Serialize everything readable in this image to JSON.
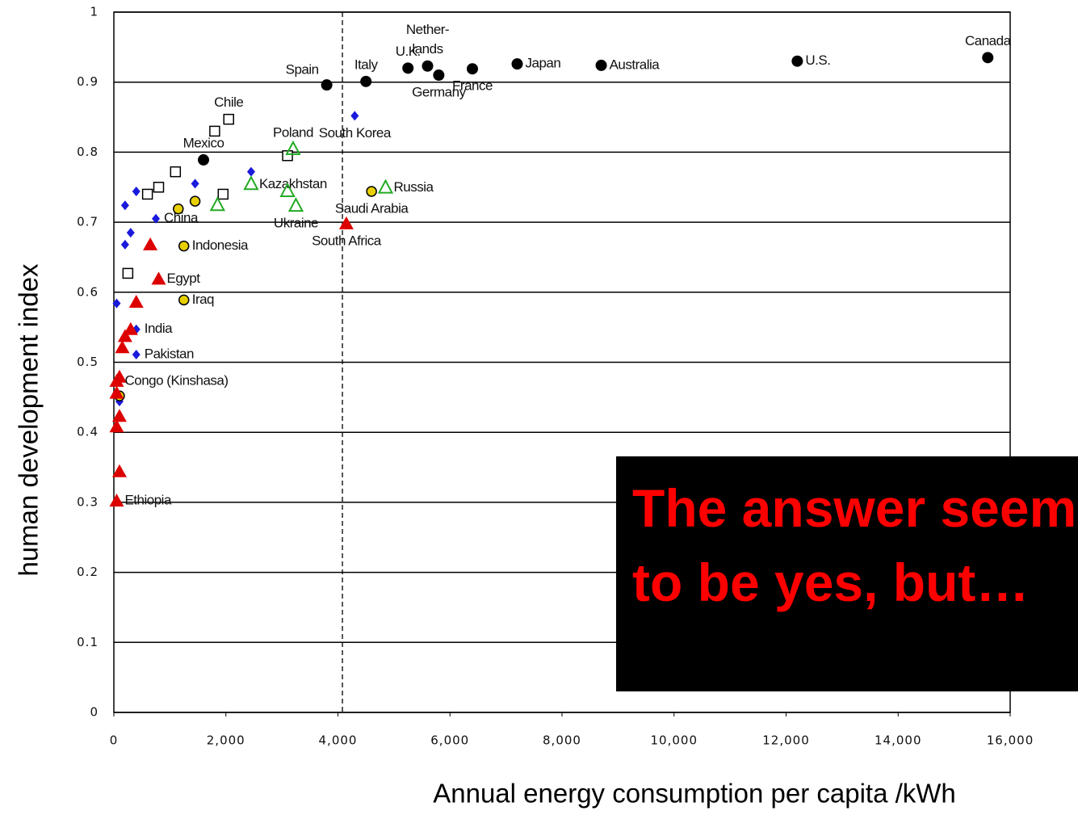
{
  "chart_data": {
    "type": "scatter",
    "x_label": "Annual energy consumption per capita /kWh",
    "y_label": "human development index",
    "xlim": [
      0,
      16000
    ],
    "ylim": [
      0,
      1
    ],
    "xticks": [
      0,
      {
        "value": 2000,
        "label": "2,000"
      },
      {
        "value": 4000,
        "label": "4,000"
      },
      {
        "value": 6000,
        "label": "6,000"
      },
      {
        "value": 8000,
        "label": "8,000"
      },
      {
        "value": 10000,
        "label": "10,000"
      },
      {
        "value": 12000,
        "label": "12,000"
      },
      {
        "value": 14000,
        "label": "14,000"
      },
      {
        "value": 16000,
        "label": "16,000"
      }
    ],
    "yticks": [
      0,
      0.1,
      0.2,
      0.3,
      0.4,
      0.5,
      0.6,
      0.7,
      0.8,
      0.9,
      1
    ],
    "grid": true,
    "vline": 4080,
    "annotation": "The answer seems to be yes, but…",
    "series": [
      {
        "marker": "circle",
        "color": "#000000",
        "x": [
          15600,
          12200,
          8700,
          7200,
          6400,
          5800,
          5600,
          5250,
          4500,
          3800,
          1600
        ],
        "values": [
          0.935,
          0.93,
          0.924,
          0.926,
          0.919,
          0.91,
          0.923,
          0.92,
          0.901,
          0.896,
          0.789
        ],
        "labels": [
          "Canada",
          "U.S.",
          "Australia",
          "Japan",
          "France",
          "Germany",
          "Nether-\nlands",
          "U.K.",
          "Italy",
          "Spain",
          "Mexico"
        ],
        "label_pos": [
          "above",
          "right",
          "right",
          "right",
          "below",
          "below",
          "above",
          "above",
          "above",
          "left",
          "above"
        ]
      },
      {
        "marker": "diamond",
        "color": "#1a1adc",
        "x": [
          4300,
          2450,
          1450,
          400,
          200,
          750,
          300,
          200,
          50,
          400,
          400,
          100
        ],
        "values": [
          0.852,
          0.772,
          0.755,
          0.744,
          0.724,
          0.705,
          0.685,
          0.668,
          0.584,
          0.547,
          0.511,
          0.444
        ],
        "labels": [
          "South Korea",
          null,
          null,
          null,
          null,
          "China",
          null,
          null,
          null,
          "India",
          "Pakistan",
          null
        ],
        "label_pos": [
          "below",
          null,
          null,
          null,
          null,
          "right",
          null,
          null,
          null,
          "right",
          "right",
          null
        ]
      },
      {
        "marker": "square",
        "color": "#000000",
        "x": [
          2050,
          1800,
          1100,
          800,
          600,
          1950,
          3100,
          250
        ],
        "values": [
          0.847,
          0.83,
          0.772,
          0.75,
          0.74,
          0.74,
          0.795,
          0.627
        ],
        "labels": [
          "Chile",
          null,
          null,
          null,
          null,
          null,
          null,
          null
        ],
        "label_pos": [
          "above",
          null,
          null,
          null,
          null,
          null,
          null,
          null
        ]
      },
      {
        "marker": "triangle-open",
        "color": "#22aa22",
        "x": [
          3200,
          2450,
          3100,
          3250,
          1850,
          4850
        ],
        "values": [
          0.804,
          0.754,
          0.744,
          0.723,
          0.724,
          0.749
        ],
        "labels": [
          "Poland",
          "Kazakhstan",
          null,
          "Ukraine",
          null,
          "Russia"
        ],
        "label_pos": [
          "above",
          "right",
          null,
          "below",
          null,
          "right"
        ]
      },
      {
        "marker": "circle-outline",
        "color": "#e8d000",
        "x": [
          4600,
          1450,
          1150,
          1250,
          1250,
          100
        ],
        "values": [
          0.744,
          0.73,
          0.719,
          0.666,
          0.589,
          0.452
        ],
        "labels": [
          "Saudi Arabia",
          null,
          null,
          "Indonesia",
          "Iraq",
          null
        ],
        "label_pos": [
          "below",
          null,
          null,
          "right",
          "right",
          null
        ]
      },
      {
        "marker": "triangle",
        "color": "#dd0000",
        "x": [
          4150,
          650,
          800,
          400,
          300,
          200,
          150,
          100,
          50,
          50,
          100,
          50,
          100,
          50
        ],
        "values": [
          0.698,
          0.668,
          0.619,
          0.586,
          0.547,
          0.537,
          0.521,
          0.479,
          0.473,
          0.456,
          0.423,
          0.408,
          0.344,
          0.302
        ],
        "labels": [
          "South Africa",
          null,
          "Egypt",
          null,
          null,
          null,
          null,
          null,
          "Congo (Kinshasa)",
          null,
          null,
          null,
          null,
          "Ethiopia"
        ],
        "label_pos": [
          "below",
          null,
          "right",
          null,
          null,
          null,
          null,
          null,
          "right",
          null,
          null,
          null,
          null,
          "right"
        ]
      }
    ]
  }
}
